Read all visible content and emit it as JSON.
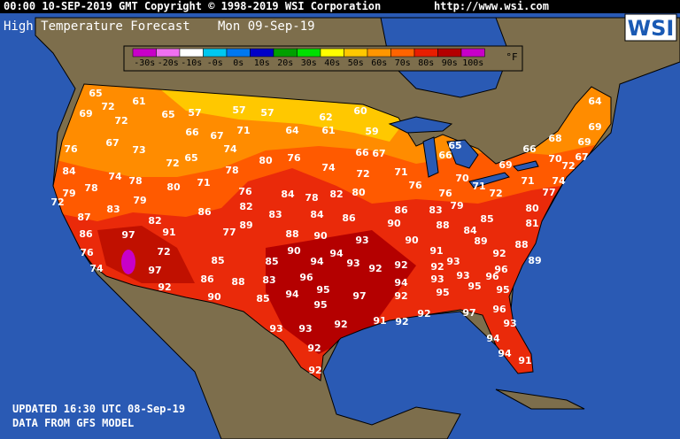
{
  "header": {
    "timestamp": "00:00 10-SEP-2019 GMT Copyright © 1998-2019 WSI Corporation",
    "url": "http://www.wsi.com"
  },
  "title": {
    "product": "High Temperature Forecast",
    "date": "Mon 09-Sep-19"
  },
  "logo": "WSI",
  "legend": {
    "unit": "°F",
    "items": [
      {
        "label": "-30s",
        "color": "#c800c8"
      },
      {
        "label": "-20s",
        "color": "#f070f0"
      },
      {
        "label": "-10s",
        "color": "#ffffff"
      },
      {
        "label": "-0s",
        "color": "#00c8f0"
      },
      {
        "label": "0s",
        "color": "#0078f0"
      },
      {
        "label": "10s",
        "color": "#0000c8"
      },
      {
        "label": "20s",
        "color": "#00a000"
      },
      {
        "label": "30s",
        "color": "#00e000"
      },
      {
        "label": "40s",
        "color": "#ffff00"
      },
      {
        "label": "50s",
        "color": "#ffc800"
      },
      {
        "label": "60s",
        "color": "#ff9600"
      },
      {
        "label": "70s",
        "color": "#ff6400"
      },
      {
        "label": "80s",
        "color": "#e81e00"
      },
      {
        "label": "90s",
        "color": "#b40000"
      },
      {
        "label": "100s",
        "color": "#c800c8"
      }
    ]
  },
  "temperatures": [
    65,
    61,
    72,
    69,
    65,
    57,
    57,
    57,
    62,
    60,
    64,
    72,
    66,
    67,
    71,
    64,
    61,
    59,
    69,
    76,
    67,
    73,
    74,
    65,
    72,
    80,
    76,
    66,
    67,
    65,
    66,
    66,
    68,
    69,
    70,
    72,
    67,
    69,
    84,
    74,
    78,
    78,
    74,
    72,
    71,
    70,
    71,
    71,
    74,
    77,
    79,
    78,
    72,
    80,
    71,
    76,
    84,
    78,
    82,
    80,
    76,
    76,
    79,
    72,
    80,
    83,
    79,
    86,
    82,
    83,
    84,
    86,
    86,
    83,
    85,
    81,
    87,
    82,
    89,
    90,
    88,
    84,
    86,
    97,
    91,
    77,
    88,
    90,
    93,
    90,
    89,
    88,
    76,
    72,
    90,
    94,
    91,
    92,
    74,
    97,
    85,
    85,
    94,
    93,
    92,
    92,
    92,
    93,
    96,
    89,
    86,
    88,
    83,
    96,
    94,
    93,
    93,
    96,
    92,
    95,
    97,
    92,
    95,
    95,
    95,
    90,
    85,
    94,
    95,
    96,
    91,
    92,
    92,
    97,
    93,
    93,
    93,
    92,
    94,
    92,
    94,
    91,
    92
  ],
  "footer": {
    "updated": "UPDATED 16:30 UTC 08-Sep-19",
    "source": "DATA FROM GFS MODEL"
  }
}
